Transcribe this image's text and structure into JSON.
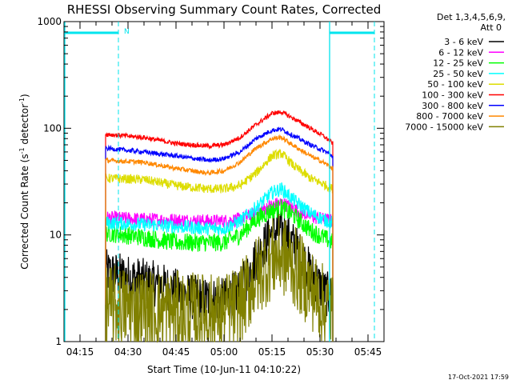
{
  "chart_data": {
    "type": "line",
    "title": "RHESSI Observing Summary Count Rates, Corrected",
    "xlabel": "Start Time (10-Jun-11 04:10:22)",
    "ylabel": "Corrected Count Rate (s⁻¹ detector⁻¹)",
    "ylabel_main": "Corrected Count Rate (s",
    "ylabel_sup1": "-1",
    "ylabel_mid": " detector",
    "ylabel_sup2": "-1",
    "ylabel_end": ")",
    "yscale": "log",
    "ylim": [
      1,
      1000
    ],
    "y_ticks": [
      {
        "value": 1,
        "label": "1"
      },
      {
        "value": 10,
        "label": "10"
      },
      {
        "value": 100,
        "label": "100"
      },
      {
        "value": 1000,
        "label": "1000"
      }
    ],
    "xlim": [
      "04:10",
      "05:50"
    ],
    "x_ticks": [
      "04:15",
      "04:30",
      "04:45",
      "05:00",
      "05:15",
      "05:30",
      "05:45"
    ],
    "detector_info": "Det 1,3,4,5,6,9,",
    "attenuator_info": "Att 0",
    "night_marker": "N",
    "timestamp": "17-Oct-2021 17:59",
    "data_start": "04:23",
    "data_end": "05:34",
    "series": [
      {
        "name": "3 - 6 keV",
        "color": "#000000",
        "noise": 0.5,
        "points": [
          [
            "04:23",
            4.5
          ],
          [
            "04:30",
            4.0
          ],
          [
            "04:40",
            3.4
          ],
          [
            "04:50",
            2.6
          ],
          [
            "05:00",
            2.4
          ],
          [
            "05:05",
            3.0
          ],
          [
            "05:10",
            6.0
          ],
          [
            "05:15",
            10.5
          ],
          [
            "05:18",
            11.0
          ],
          [
            "05:22",
            8.0
          ],
          [
            "05:27",
            4.5
          ],
          [
            "05:31",
            3.0
          ],
          [
            "05:34",
            2.5
          ]
        ]
      },
      {
        "name": "6 - 12 keV",
        "color": "#ff00ff",
        "noise": 0.15,
        "points": [
          [
            "04:23",
            14.5
          ],
          [
            "04:35",
            14.0
          ],
          [
            "04:45",
            13.8
          ],
          [
            "04:55",
            13.5
          ],
          [
            "05:00",
            13.5
          ],
          [
            "05:05",
            14.0
          ],
          [
            "05:10",
            16.0
          ],
          [
            "05:15",
            19.0
          ],
          [
            "05:18",
            20.0
          ],
          [
            "05:22",
            17.5
          ],
          [
            "05:27",
            15.0
          ],
          [
            "05:31",
            14.0
          ],
          [
            "05:34",
            13.5
          ]
        ]
      },
      {
        "name": "12 - 25 keV",
        "color": "#00ff00",
        "noise": 0.2,
        "points": [
          [
            "04:23",
            10.5
          ],
          [
            "04:35",
            9.5
          ],
          [
            "04:45",
            8.5
          ],
          [
            "04:55",
            8.5
          ],
          [
            "05:00",
            8.5
          ],
          [
            "05:05",
            10.0
          ],
          [
            "05:10",
            14.0
          ],
          [
            "05:15",
            17.0
          ],
          [
            "05:18",
            18.0
          ],
          [
            "05:22",
            15.0
          ],
          [
            "05:27",
            11.0
          ],
          [
            "05:31",
            9.5
          ],
          [
            "05:34",
            8.5
          ]
        ]
      },
      {
        "name": "25 - 50 keV",
        "color": "#00ffff",
        "noise": 0.15,
        "points": [
          [
            "04:23",
            13.0
          ],
          [
            "04:35",
            12.5
          ],
          [
            "04:45",
            12.0
          ],
          [
            "04:55",
            11.5
          ],
          [
            "05:00",
            11.5
          ],
          [
            "05:05",
            13.5
          ],
          [
            "05:10",
            18.0
          ],
          [
            "05:15",
            25.0
          ],
          [
            "05:18",
            27.0
          ],
          [
            "05:22",
            21.0
          ],
          [
            "05:27",
            16.0
          ],
          [
            "05:31",
            14.0
          ],
          [
            "05:34",
            13.0
          ]
        ]
      },
      {
        "name": "50 - 100 keV",
        "color": "#dddd00",
        "noise": 0.1,
        "points": [
          [
            "04:23",
            34.0
          ],
          [
            "04:35",
            33.0
          ],
          [
            "04:45",
            29.0
          ],
          [
            "04:55",
            27.0
          ],
          [
            "05:00",
            27.0
          ],
          [
            "05:05",
            29.0
          ],
          [
            "05:10",
            38.0
          ],
          [
            "05:15",
            55.0
          ],
          [
            "05:18",
            58.0
          ],
          [
            "05:22",
            44.0
          ],
          [
            "05:27",
            34.0
          ],
          [
            "05:31",
            30.0
          ],
          [
            "05:34",
            27.0
          ]
        ]
      },
      {
        "name": "100 - 300 keV",
        "color": "#ff0000",
        "noise": 0.05,
        "points": [
          [
            "04:23",
            88.0
          ],
          [
            "04:35",
            82.0
          ],
          [
            "04:45",
            72.0
          ],
          [
            "04:55",
            68.0
          ],
          [
            "05:00",
            70.0
          ],
          [
            "05:05",
            82.0
          ],
          [
            "05:10",
            108.0
          ],
          [
            "05:15",
            138.0
          ],
          [
            "05:18",
            142.0
          ],
          [
            "05:22",
            122.0
          ],
          [
            "05:27",
            100.0
          ],
          [
            "05:31",
            85.0
          ],
          [
            "05:34",
            72.0
          ]
        ]
      },
      {
        "name": "300 - 800 keV",
        "color": "#0000ff",
        "noise": 0.05,
        "points": [
          [
            "04:23",
            65.0
          ],
          [
            "04:35",
            60.0
          ],
          [
            "04:45",
            55.0
          ],
          [
            "04:55",
            50.0
          ],
          [
            "05:00",
            52.0
          ],
          [
            "05:05",
            60.0
          ],
          [
            "05:10",
            80.0
          ],
          [
            "05:15",
            96.0
          ],
          [
            "05:18",
            98.0
          ],
          [
            "05:22",
            84.0
          ],
          [
            "05:27",
            70.0
          ],
          [
            "05:31",
            62.0
          ],
          [
            "05:34",
            55.0
          ]
        ]
      },
      {
        "name": "800 - 7000 keV",
        "color": "#ff8800",
        "noise": 0.05,
        "points": [
          [
            "04:23",
            50.0
          ],
          [
            "04:35",
            48.0
          ],
          [
            "04:45",
            42.0
          ],
          [
            "04:55",
            38.0
          ],
          [
            "05:00",
            40.0
          ],
          [
            "05:05",
            48.0
          ],
          [
            "05:10",
            65.0
          ],
          [
            "05:15",
            80.0
          ],
          [
            "05:18",
            82.0
          ],
          [
            "05:22",
            68.0
          ],
          [
            "05:27",
            55.0
          ],
          [
            "05:31",
            48.0
          ],
          [
            "05:34",
            42.0
          ]
        ]
      },
      {
        "name": "7000 - 15000 keV",
        "color": "#808000",
        "noise": 0.9,
        "points": [
          [
            "04:23",
            2.2
          ],
          [
            "04:35",
            2.0
          ],
          [
            "04:45",
            1.9
          ],
          [
            "04:55",
            1.8
          ],
          [
            "05:00",
            1.8
          ],
          [
            "05:05",
            2.2
          ],
          [
            "05:10",
            4.0
          ],
          [
            "05:15",
            6.0
          ],
          [
            "05:18",
            6.5
          ],
          [
            "05:22",
            5.0
          ],
          [
            "05:27",
            3.2
          ],
          [
            "05:31",
            2.2
          ],
          [
            "05:34",
            1.9
          ]
        ]
      }
    ]
  }
}
